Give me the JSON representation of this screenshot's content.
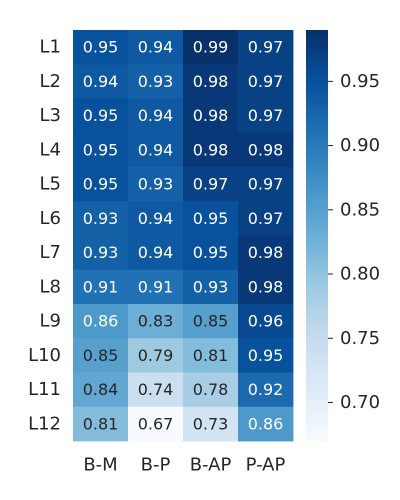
{
  "chart_data": {
    "type": "heatmap",
    "title": "",
    "xlabel": "",
    "ylabel": "",
    "x_categories": [
      "B-M",
      "B-P",
      "B-AP",
      "P-AP"
    ],
    "y_categories": [
      "L1",
      "L2",
      "L3",
      "L4",
      "L5",
      "L6",
      "L7",
      "L8",
      "L9",
      "L10",
      "L11",
      "L12"
    ],
    "values": [
      [
        0.95,
        0.94,
        0.99,
        0.97
      ],
      [
        0.94,
        0.93,
        0.98,
        0.97
      ],
      [
        0.95,
        0.94,
        0.98,
        0.97
      ],
      [
        0.95,
        0.94,
        0.98,
        0.98
      ],
      [
        0.95,
        0.93,
        0.97,
        0.97
      ],
      [
        0.93,
        0.94,
        0.95,
        0.97
      ],
      [
        0.93,
        0.94,
        0.95,
        0.98
      ],
      [
        0.91,
        0.91,
        0.93,
        0.98
      ],
      [
        0.86,
        0.83,
        0.85,
        0.96
      ],
      [
        0.85,
        0.79,
        0.81,
        0.95
      ],
      [
        0.84,
        0.74,
        0.78,
        0.92
      ],
      [
        0.81,
        0.67,
        0.73,
        0.86
      ]
    ],
    "value_labels": [
      [
        "0.95",
        "0.94",
        "0.99",
        "0.97"
      ],
      [
        "0.94",
        "0.93",
        "0.98",
        "0.97"
      ],
      [
        "0.95",
        "0.94",
        "0.98",
        "0.97"
      ],
      [
        "0.95",
        "0.94",
        "0.98",
        "0.98"
      ],
      [
        "0.95",
        "0.93",
        "0.97",
        "0.97"
      ],
      [
        "0.93",
        "0.94",
        "0.95",
        "0.97"
      ],
      [
        "0.93",
        "0.94",
        "0.95",
        "0.98"
      ],
      [
        "0.91",
        "0.91",
        "0.93",
        "0.98"
      ],
      [
        "0.86",
        "0.83",
        "0.85",
        "0.96"
      ],
      [
        "0.85",
        "0.79",
        "0.81",
        "0.95"
      ],
      [
        "0.84",
        "0.74",
        "0.78",
        "0.92"
      ],
      [
        "0.81",
        "0.67",
        "0.73",
        "0.86"
      ]
    ],
    "colormap": "Blues",
    "color_range": [
      0.67,
      0.99
    ],
    "colorbar_ticks": [
      0.7,
      0.75,
      0.8,
      0.85,
      0.9,
      0.95
    ],
    "colorbar_tick_labels": [
      "0.70",
      "0.75",
      "0.80",
      "0.85",
      "0.90",
      "0.95"
    ],
    "legend": "colorbar-right",
    "grid": false
  }
}
